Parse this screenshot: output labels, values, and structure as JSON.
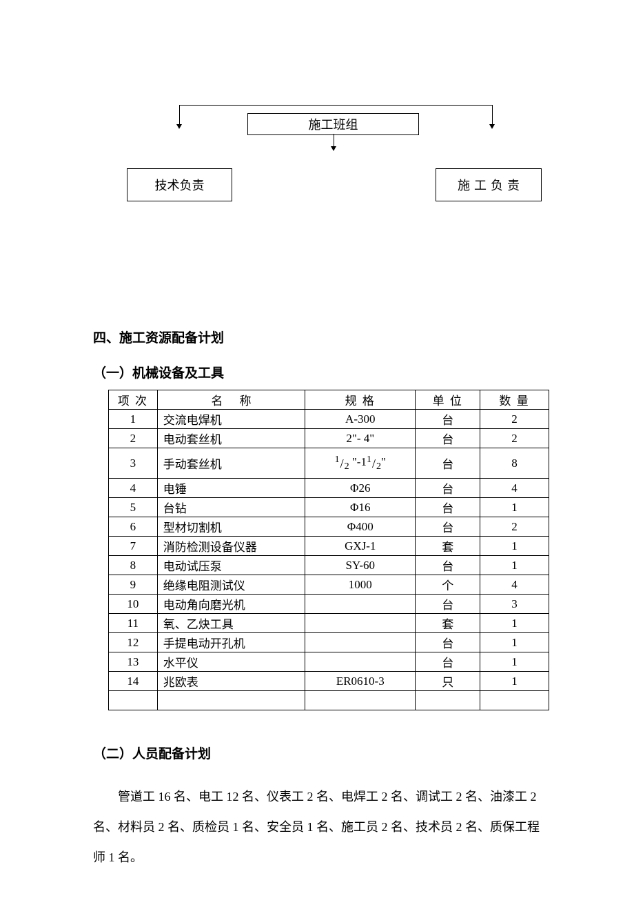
{
  "diagram": {
    "box_top": "施工班组",
    "box_left": "技术负责",
    "box_right": "施工负责"
  },
  "section4": {
    "title": "四、施工资源配备计划",
    "sub1_title": "（一）机械设备及工具",
    "sub2_title": "（二）人员配备计划",
    "body": "管道工 16 名、电工 12 名、仪表工 2 名、电焊工 2 名、调试工 2 名、油漆工 2 名、材料员 2 名、质检员 1 名、安全员 1 名、施工员 2 名、技术员 2 名、质保工程师 1 名。"
  },
  "table": {
    "headers": {
      "idx": "项 次",
      "name": "名称",
      "spec": "规 格",
      "unit": "单 位",
      "qty": "数 量"
    },
    "rows": [
      {
        "idx": "1",
        "name": "交流电焊机",
        "spec": "A-300",
        "unit": "台",
        "qty": "2"
      },
      {
        "idx": "2",
        "name": "电动套丝机",
        "spec": "2\"- 4\"",
        "unit": "台",
        "qty": "2"
      },
      {
        "idx": "3",
        "name": "手动套丝机",
        "spec_frac": true,
        "unit": "台",
        "qty": "8"
      },
      {
        "idx": "4",
        "name": "电锤",
        "spec": "Φ26",
        "unit": "台",
        "qty": "4"
      },
      {
        "idx": "5",
        "name": "台钻",
        "spec": "Φ16",
        "unit": "台",
        "qty": "1"
      },
      {
        "idx": "6",
        "name": "型材切割机",
        "spec": "Φ400",
        "unit": "台",
        "qty": "2"
      },
      {
        "idx": "7",
        "name": "消防检测设备仪器",
        "spec": "GXJ-1",
        "unit": "套",
        "qty": "1"
      },
      {
        "idx": "8",
        "name": "电动试压泵",
        "spec": "SY-60",
        "unit": "台",
        "qty": "1"
      },
      {
        "idx": "9",
        "name": "绝缘电阻测试仪",
        "spec": "1000",
        "unit": "个",
        "qty": "4"
      },
      {
        "idx": "10",
        "name": "电动角向磨光机",
        "spec": "",
        "unit": "台",
        "qty": "3"
      },
      {
        "idx": "11",
        "name": "氧、乙炔工具",
        "spec": "",
        "unit": "套",
        "qty": "1"
      },
      {
        "idx": "12",
        "name": "手提电动开孔机",
        "spec": "",
        "unit": "台",
        "qty": "1"
      },
      {
        "idx": "13",
        "name": "水平仪",
        "spec": "",
        "unit": "台",
        "qty": "1"
      },
      {
        "idx": "14",
        "name": "兆欧表",
        "spec": "ER0610-3",
        "unit": "只",
        "qty": "1"
      }
    ],
    "frac_spec": {
      "n1": "1",
      "d1": "2",
      "mid": " \"-1",
      "n2": "1",
      "d2": "2",
      "end": "\""
    }
  },
  "style": {
    "font_body": 18,
    "font_table": 17,
    "font_heading": 19,
    "border_color": "#000000",
    "bg": "#ffffff"
  }
}
